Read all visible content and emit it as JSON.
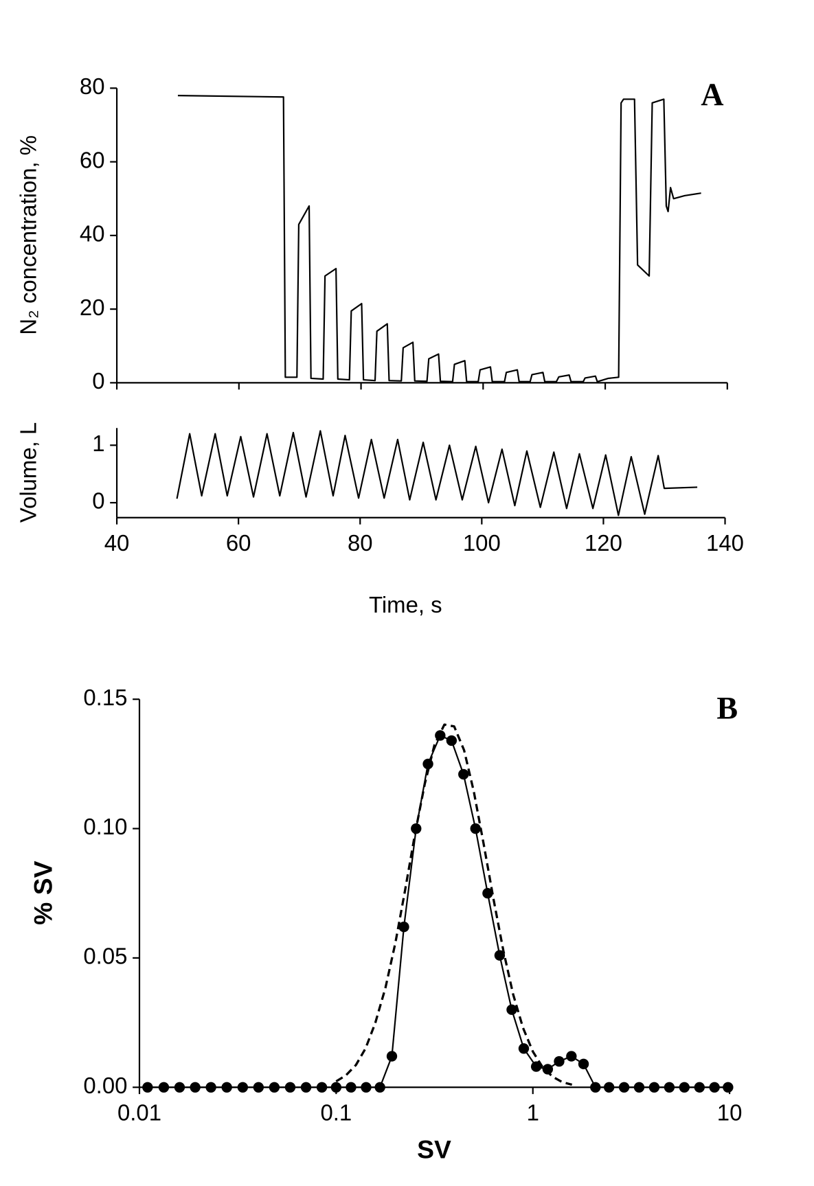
{
  "chart_data": [
    {
      "type": "line",
      "annotation": "A",
      "ylabel": "N₂ concentration, %",
      "color": "#000000",
      "show_xtick_labels": false,
      "xlim": [
        40,
        140
      ],
      "xticks": [
        40,
        60,
        80,
        100,
        120,
        140
      ],
      "ylim": [
        0,
        80
      ],
      "yticks": [
        0,
        20,
        40,
        60,
        80
      ],
      "x": [
        50,
        67.3,
        67.6,
        69.5,
        69.8,
        71.5,
        71.8,
        73.8,
        74.1,
        75.9,
        76.2,
        78.1,
        78.4,
        80.1,
        80.4,
        82.3,
        82.6,
        84.3,
        84.6,
        86.6,
        86.9,
        88.5,
        88.8,
        90.8,
        91.1,
        92.7,
        93.0,
        95.0,
        95.3,
        97.0,
        97.3,
        99.2,
        99.5,
        101.2,
        101.5,
        103.5,
        103.8,
        105.6,
        105.9,
        107.7,
        108.0,
        109.8,
        110.1,
        112.0,
        112.4,
        114.1,
        114.4,
        116.4,
        116.7,
        118.4,
        118.7,
        120.5,
        122.2,
        122.6,
        123.0,
        124.8,
        125.3,
        127.2,
        127.7,
        129.6,
        130.0,
        130.3,
        130.7,
        131.2,
        133.0,
        135.7
      ],
      "values": [
        78,
        77.6,
        1.5,
        1.5,
        43,
        48,
        1.2,
        1,
        29,
        31,
        1,
        0.8,
        19.5,
        21.5,
        0.8,
        0.6,
        14,
        16,
        0.6,
        0.5,
        9.5,
        11,
        0.5,
        0.4,
        6.5,
        7.8,
        0.4,
        0.3,
        5,
        6,
        0.3,
        0.3,
        3.5,
        4.3,
        0.3,
        0.3,
        2.8,
        3.5,
        0.3,
        0.3,
        2.2,
        2.8,
        0.3,
        0.3,
        1.6,
        2.1,
        0.3,
        0.3,
        1.3,
        1.8,
        0.3,
        1.2,
        1.5,
        76,
        77,
        77,
        32,
        29,
        76,
        77,
        48,
        46.5,
        53,
        50,
        50.8,
        51.5
      ]
    },
    {
      "type": "line",
      "ylabel": "Volume, L",
      "xlabel": "Time, s",
      "color": "#000000",
      "show_xtick_labels": true,
      "xlim": [
        40,
        140
      ],
      "xticks": [
        40,
        60,
        80,
        100,
        120,
        140
      ],
      "ylim": [
        -0.26,
        1.3
      ],
      "yticks": [
        0,
        1
      ],
      "x": [
        49.88,
        51.98,
        53.95,
        56.17,
        58.15,
        60.37,
        62.47,
        64.69,
        66.79,
        69.01,
        71.11,
        73.46,
        75.56,
        77.53,
        79.75,
        81.85,
        83.95,
        86.17,
        88.15,
        90.37,
        92.47,
        94.69,
        96.79,
        99.01,
        101.11,
        103.33,
        105.43,
        107.41,
        109.63,
        111.85,
        113.95,
        116.05,
        118.27,
        120.37,
        122.47,
        124.57,
        126.79,
        129.01,
        130.0,
        135.43
      ],
      "values": [
        0.07,
        1.2,
        0.12,
        1.2,
        0.12,
        1.15,
        0.1,
        1.2,
        0.12,
        1.22,
        0.1,
        1.25,
        0.12,
        1.17,
        0.08,
        1.1,
        0.08,
        1.1,
        0.05,
        1.05,
        0.05,
        1.0,
        0.05,
        0.98,
        0.0,
        0.93,
        -0.05,
        0.9,
        -0.08,
        0.88,
        -0.1,
        0.85,
        -0.1,
        0.83,
        -0.22,
        0.8,
        -0.2,
        0.82,
        0.25,
        0.27
      ]
    },
    {
      "type": "line",
      "annotation": "B",
      "xlabel": "SV",
      "ylabel": "% SV",
      "xscale": "log",
      "show_xtick_labels": true,
      "xlim": [
        0.01,
        10
      ],
      "xticks": [
        0.01,
        0.1,
        1,
        10
      ],
      "ylim": [
        0,
        0.15
      ],
      "yticks": [
        {
          "value": 0,
          "label": "0.00"
        },
        {
          "value": 0.05,
          "label": "0.05"
        },
        {
          "value": 0.1,
          "label": "0.10"
        },
        {
          "value": 0.15,
          "label": "0.15"
        }
      ],
      "series": [
        {
          "color": "#000000",
          "marker": "circle",
          "dash": "solid",
          "x": [
            0.011,
            0.0133,
            0.016,
            0.0192,
            0.0231,
            0.0278,
            0.0335,
            0.0403,
            0.0485,
            0.0584,
            0.0703,
            0.0846,
            0.1,
            0.119,
            0.142,
            0.167,
            0.192,
            0.221,
            0.255,
            0.293,
            0.338,
            0.386,
            0.444,
            0.511,
            0.589,
            0.678,
            0.781,
            0.899,
            1.04,
            1.19,
            1.36,
            1.57,
            1.81,
            2.08,
            2.44,
            2.91,
            3.47,
            4.14,
            4.94,
            5.89,
            7.03,
            8.38,
            9.82
          ],
          "values": [
            0,
            0,
            0,
            0,
            0,
            0,
            0,
            0,
            0,
            0,
            0,
            0,
            0,
            0,
            0,
            0,
            0.012,
            0.062,
            0.1,
            0.125,
            0.136,
            0.134,
            0.121,
            0.1,
            0.075,
            0.051,
            0.03,
            0.015,
            0.008,
            0.007,
            0.01,
            0.012,
            0.009,
            0,
            0,
            0,
            0,
            0,
            0,
            0,
            0,
            0,
            0
          ]
        },
        {
          "color": "#000000",
          "marker": "none",
          "dash": "dashed",
          "x": [
            0.1,
            0.112,
            0.126,
            0.141,
            0.158,
            0.178,
            0.2,
            0.224,
            0.251,
            0.282,
            0.316,
            0.355,
            0.398,
            0.447,
            0.501,
            0.562,
            0.631,
            0.708,
            0.794,
            0.891,
            1,
            1.12,
            1.26,
            1.41,
            1.58
          ],
          "values": [
            0.0023,
            0.0046,
            0.0086,
            0.015,
            0.0248,
            0.0384,
            0.0558,
            0.0761,
            0.0975,
            0.1172,
            0.1323,
            0.1402,
            0.1395,
            0.1303,
            0.1143,
            0.0941,
            0.0727,
            0.0528,
            0.0359,
            0.023,
            0.0138,
            0.0078,
            0.0041,
            0.002,
            0.001
          ]
        }
      ]
    }
  ]
}
